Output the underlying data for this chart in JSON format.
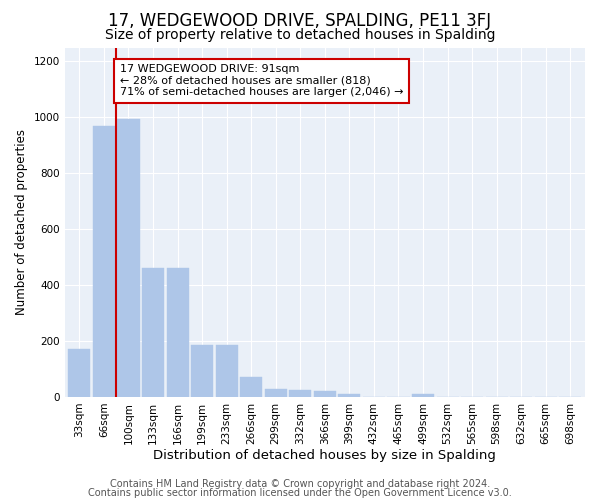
{
  "title": "17, WEDGEWOOD DRIVE, SPALDING, PE11 3FJ",
  "subtitle": "Size of property relative to detached houses in Spalding",
  "xlabel": "Distribution of detached houses by size in Spalding",
  "ylabel": "Number of detached properties",
  "categories": [
    "33sqm",
    "66sqm",
    "100sqm",
    "133sqm",
    "166sqm",
    "199sqm",
    "233sqm",
    "266sqm",
    "299sqm",
    "332sqm",
    "366sqm",
    "399sqm",
    "432sqm",
    "465sqm",
    "499sqm",
    "532sqm",
    "565sqm",
    "598sqm",
    "632sqm",
    "665sqm",
    "698sqm"
  ],
  "values": [
    170,
    968,
    995,
    462,
    462,
    185,
    185,
    70,
    28,
    25,
    20,
    12,
    0,
    0,
    12,
    0,
    0,
    0,
    0,
    0,
    0
  ],
  "bar_color": "#aec6e8",
  "bar_edge_color": "#aec6e8",
  "vline_color": "#cc0000",
  "vline_x": 1.5,
  "annotation_text": "17 WEDGEWOOD DRIVE: 91sqm\n← 28% of detached houses are smaller (818)\n71% of semi-detached houses are larger (2,046) →",
  "annotation_box_color": "#ffffff",
  "annotation_box_edge": "#cc0000",
  "ylim": [
    0,
    1250
  ],
  "yticks": [
    0,
    200,
    400,
    600,
    800,
    1000,
    1200
  ],
  "bg_color": "#eaf0f8",
  "footer1": "Contains HM Land Registry data © Crown copyright and database right 2024.",
  "footer2": "Contains public sector information licensed under the Open Government Licence v3.0.",
  "title_fontsize": 12,
  "subtitle_fontsize": 10,
  "xlabel_fontsize": 9.5,
  "ylabel_fontsize": 8.5,
  "tick_fontsize": 7.5,
  "annotation_fontsize": 8,
  "footer_fontsize": 7
}
